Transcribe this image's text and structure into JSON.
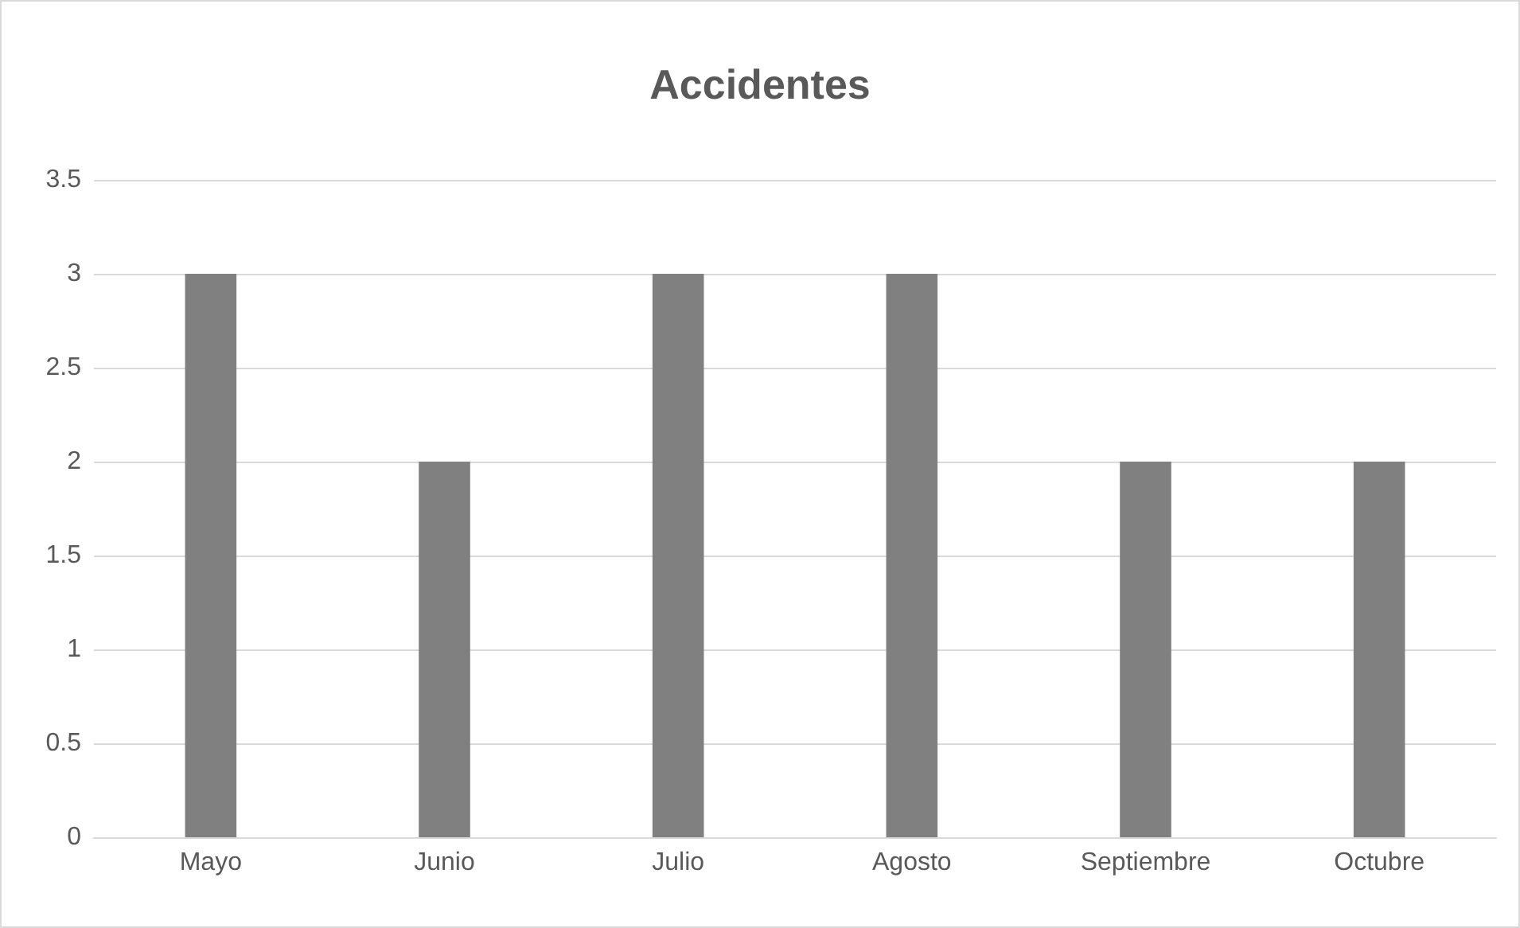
{
  "chart_data": {
    "type": "bar",
    "title": "Accidentes",
    "categories": [
      "Mayo",
      "Junio",
      "Julio",
      "Agosto",
      "Septiembre",
      "Octubre"
    ],
    "values": [
      3,
      2,
      3,
      3,
      2,
      2
    ],
    "color": "#808080",
    "ylim": [
      0,
      3.5
    ],
    "yticks": [
      0,
      0.5,
      1,
      1.5,
      2,
      2.5,
      3,
      3.5
    ],
    "grid": "y"
  }
}
